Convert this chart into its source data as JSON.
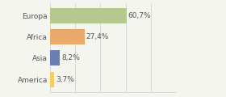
{
  "categories": [
    "Europa",
    "Africa",
    "Asia",
    "America"
  ],
  "values": [
    60.7,
    27.4,
    8.2,
    3.7
  ],
  "labels": [
    "60,7%",
    "27,4%",
    "8,2%",
    "3,7%"
  ],
  "bar_colors": [
    "#b5c98e",
    "#e8a96b",
    "#6b7fb5",
    "#f0d060"
  ],
  "background_color": "#f5f5f0",
  "xlim": [
    0,
    100
  ],
  "bar_height": 0.72,
  "label_fontsize": 6.5,
  "category_fontsize": 6.5,
  "figsize": [
    2.8,
    1.2
  ],
  "dpi": 100
}
